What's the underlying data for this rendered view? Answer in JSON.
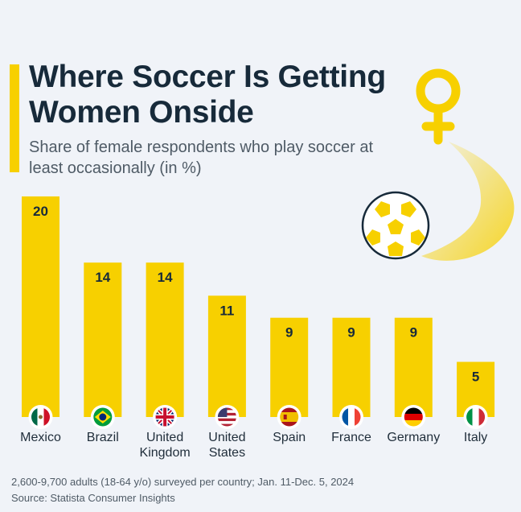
{
  "header": {
    "title": "Where Soccer Is Getting Women Onside",
    "subtitle": "Share of female respondents who play soccer at least occasionally (in %)"
  },
  "chart_data": {
    "type": "bar",
    "title": "Where Soccer Is Getting Women Onside",
    "subtitle": "Share of female respondents who play soccer at least occasionally (in %)",
    "categories": [
      "Mexico",
      "Brazil",
      "United Kingdom",
      "United States",
      "Spain",
      "France",
      "Germany",
      "Italy"
    ],
    "category_lines": [
      [
        "Mexico"
      ],
      [
        "Brazil"
      ],
      [
        "United",
        "Kingdom"
      ],
      [
        "United",
        "States"
      ],
      [
        "Spain"
      ],
      [
        "France"
      ],
      [
        "Germany"
      ],
      [
        "Italy"
      ]
    ],
    "values": [
      20,
      14,
      14,
      11,
      9,
      9,
      9,
      5
    ],
    "flag_icons": [
      "mexico-flag-icon",
      "brazil-flag-icon",
      "uk-flag-icon",
      "us-flag-icon",
      "spain-flag-icon",
      "france-flag-icon",
      "germany-flag-icon",
      "italy-flag-icon"
    ],
    "xlabel": "",
    "ylabel": "%",
    "ylim": [
      0,
      20
    ],
    "grid": false,
    "legend": "none"
  },
  "decorations": {
    "female-symbol-icon": "female-symbol-icon",
    "soccer-ball-icon": "soccer-ball-icon"
  },
  "footer": {
    "note": "2,600-9,700 adults (18-64 y/o) surveyed per country; Jan. 11-Dec. 5, 2024",
    "source": "Source: Statista Consumer Insights"
  },
  "colors": {
    "bar": "#f7d000",
    "accent": "#f7d000",
    "title_text": "#172a3a",
    "background": "#f0f3f8"
  }
}
